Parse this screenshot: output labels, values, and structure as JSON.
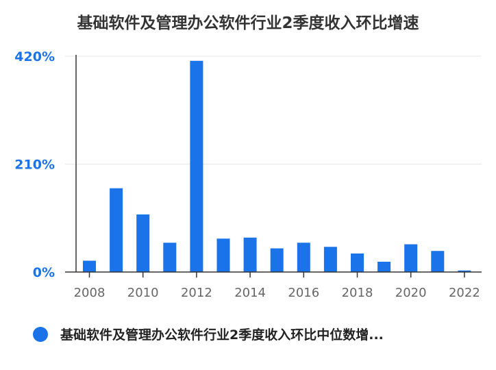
{
  "chart_data": {
    "type": "bar",
    "title": "基础软件及管理办公软件行业2季度收入环比增速",
    "xlabel": "",
    "ylabel": "",
    "ylim": [
      0,
      420
    ],
    "y_ticks": [
      "0%",
      "210%",
      "420%"
    ],
    "y_tick_values": [
      0,
      210,
      420
    ],
    "x_tick_labels": [
      "2008",
      "2010",
      "2012",
      "2014",
      "2016",
      "2018",
      "2020",
      "2022"
    ],
    "categories": [
      "2008",
      "2009",
      "2010",
      "2011",
      "2012",
      "2013",
      "2014",
      "2015",
      "2016",
      "2017",
      "2018",
      "2019",
      "2020",
      "2021",
      "2022"
    ],
    "series": [
      {
        "name": "基础软件及管理办公软件行业2季度收入环比中位数增...",
        "color": "#1a73e8",
        "values": [
          22,
          163,
          112,
          57,
          411,
          65,
          67,
          46,
          57,
          49,
          36,
          20,
          54,
          41,
          3
        ]
      }
    ],
    "grid": true,
    "legend_position": "bottom-left"
  }
}
